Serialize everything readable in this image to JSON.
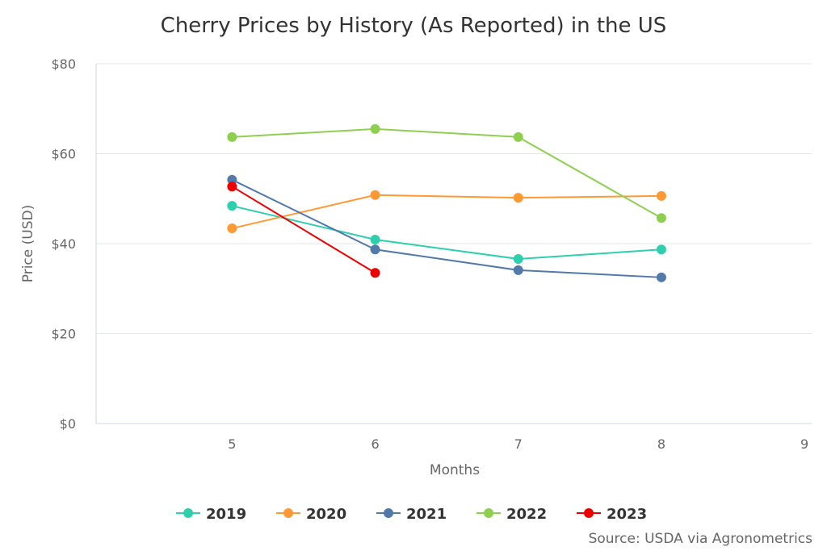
{
  "chart_data": {
    "type": "line",
    "title": "Cherry Prices by History (As Reported) in the US",
    "xlabel": "Months",
    "ylabel": "Price (USD)",
    "xlim": [
      4.05,
      9.05
    ],
    "ylim": [
      0,
      80
    ],
    "xticks": [
      5,
      6,
      7,
      8,
      9
    ],
    "yticks": [
      0,
      20,
      40,
      60,
      80
    ],
    "ytick_labels": [
      "$0",
      "$20",
      "$40",
      "$60",
      "$80"
    ],
    "grid": "horizontal",
    "legend": "bottom",
    "series": [
      {
        "name": "2019",
        "color": "#2ecfad",
        "x": [
          5,
          6,
          7,
          8
        ],
        "y": [
          48.4,
          40.9,
          36.6,
          38.7
        ]
      },
      {
        "name": "2020",
        "color": "#ff9933",
        "x": [
          5,
          6,
          7,
          8
        ],
        "y": [
          43.4,
          50.8,
          50.2,
          50.6
        ]
      },
      {
        "name": "2021",
        "color": "#5179aa",
        "x": [
          5,
          6,
          7,
          8
        ],
        "y": [
          54.2,
          38.7,
          34.1,
          32.5
        ]
      },
      {
        "name": "2022",
        "color": "#8fcf50",
        "x": [
          5,
          6,
          7,
          8
        ],
        "y": [
          63.7,
          65.5,
          63.7,
          45.7
        ]
      },
      {
        "name": "2023",
        "color": "#ee0000",
        "x": [
          5,
          6
        ],
        "y": [
          52.7,
          33.5
        ]
      }
    ],
    "source": "Source: USDA via Agronometrics"
  }
}
